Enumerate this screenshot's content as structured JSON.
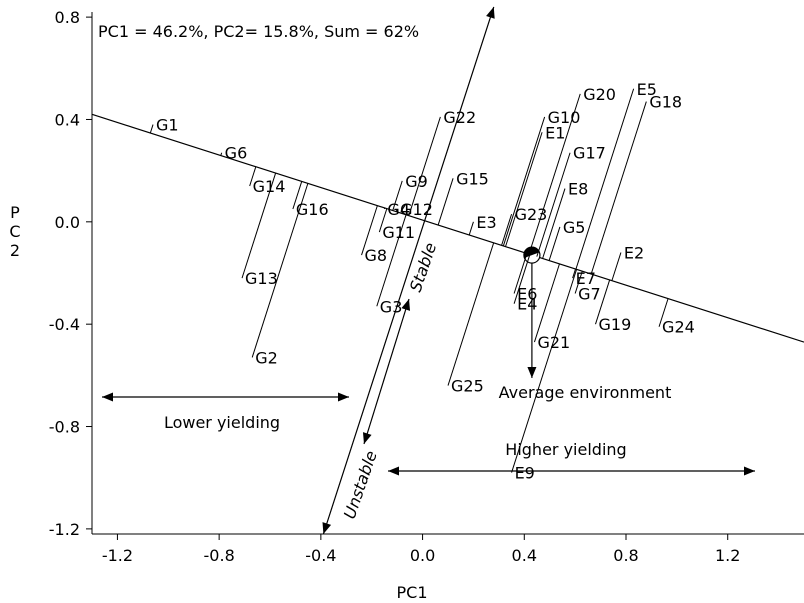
{
  "chart_data": {
    "type": "biplot",
    "title": "PC1 = 46.2%, PC2= 15.8%, Sum = 62%",
    "xlabel": "PC1",
    "ylabel": "P\nC\n2",
    "xlim": [
      -1.3,
      1.5
    ],
    "ylim": [
      -1.22,
      0.82
    ],
    "xticks": [
      -1.2,
      -0.8,
      -0.4,
      0.0,
      0.4,
      0.8,
      1.2
    ],
    "xtick_labels": [
      "-1.2",
      "-0.8",
      "-0.4",
      "0.0",
      "0.4",
      "0.8",
      "1.2"
    ],
    "yticks": [
      -1.2,
      -0.8,
      -0.4,
      0.0,
      0.4,
      0.8
    ],
    "ytick_labels": [
      "-1.2",
      "-0.8",
      "-0.4",
      "0.0",
      "0.4",
      "0.8"
    ],
    "grid": false,
    "average_environment": {
      "x": 0.43,
      "y": -0.13,
      "label": "Average environment"
    },
    "aea_line": {
      "x1": -1.3,
      "y1": 0.42,
      "x2": 1.5,
      "y2": -0.47
    },
    "stability_axis": {
      "x1": -0.39,
      "y1": -1.22,
      "x2": 0.28,
      "y2": 0.84
    },
    "genotypes": [
      {
        "name": "G1",
        "x": -1.06,
        "y": 0.38
      },
      {
        "name": "G2",
        "x": -0.67,
        "y": -0.53
      },
      {
        "name": "G3",
        "x": -0.18,
        "y": -0.33
      },
      {
        "name": "G4",
        "x": -0.15,
        "y": 0.05
      },
      {
        "name": "G5",
        "x": 0.54,
        "y": -0.02
      },
      {
        "name": "G6",
        "x": -0.79,
        "y": 0.27
      },
      {
        "name": "G7",
        "x": 0.6,
        "y": -0.28
      },
      {
        "name": "G8",
        "x": -0.24,
        "y": -0.13
      },
      {
        "name": "G9",
        "x": -0.08,
        "y": 0.16
      },
      {
        "name": "G10",
        "x": 0.48,
        "y": 0.41
      },
      {
        "name": "G11",
        "x": -0.17,
        "y": -0.04
      },
      {
        "name": "G12",
        "x": -0.1,
        "y": 0.05
      },
      {
        "name": "G13",
        "x": -0.71,
        "y": -0.22
      },
      {
        "name": "G14",
        "x": -0.68,
        "y": 0.14
      },
      {
        "name": "G15",
        "x": 0.12,
        "y": 0.17
      },
      {
        "name": "G16",
        "x": -0.51,
        "y": 0.05
      },
      {
        "name": "G17",
        "x": 0.58,
        "y": 0.27
      },
      {
        "name": "G18",
        "x": 0.88,
        "y": 0.47
      },
      {
        "name": "G19",
        "x": 0.68,
        "y": -0.4
      },
      {
        "name": "G20",
        "x": 0.62,
        "y": 0.5
      },
      {
        "name": "G21",
        "x": 0.44,
        "y": -0.47
      },
      {
        "name": "G22",
        "x": 0.07,
        "y": 0.41
      },
      {
        "name": "G23",
        "x": 0.35,
        "y": 0.03
      },
      {
        "name": "G24",
        "x": 0.93,
        "y": -0.41
      },
      {
        "name": "G25",
        "x": 0.1,
        "y": -0.64
      }
    ],
    "environments": [
      {
        "name": "E1",
        "x": 0.47,
        "y": 0.35
      },
      {
        "name": "E2",
        "x": 0.78,
        "y": -0.12
      },
      {
        "name": "E3",
        "x": 0.2,
        "y": 0.0
      },
      {
        "name": "E4",
        "x": 0.36,
        "y": -0.32
      },
      {
        "name": "E5",
        "x": 0.83,
        "y": 0.52
      },
      {
        "name": "E6",
        "x": 0.36,
        "y": -0.28
      },
      {
        "name": "E7",
        "x": 0.59,
        "y": -0.22
      },
      {
        "name": "E8",
        "x": 0.56,
        "y": 0.13
      },
      {
        "name": "E9",
        "x": 0.35,
        "y": -0.98
      }
    ],
    "annotations": {
      "stable": "Stable",
      "unstable": "Unstable",
      "lower_yielding": "Lower yielding",
      "higher_yielding": "Higher yielding"
    }
  }
}
